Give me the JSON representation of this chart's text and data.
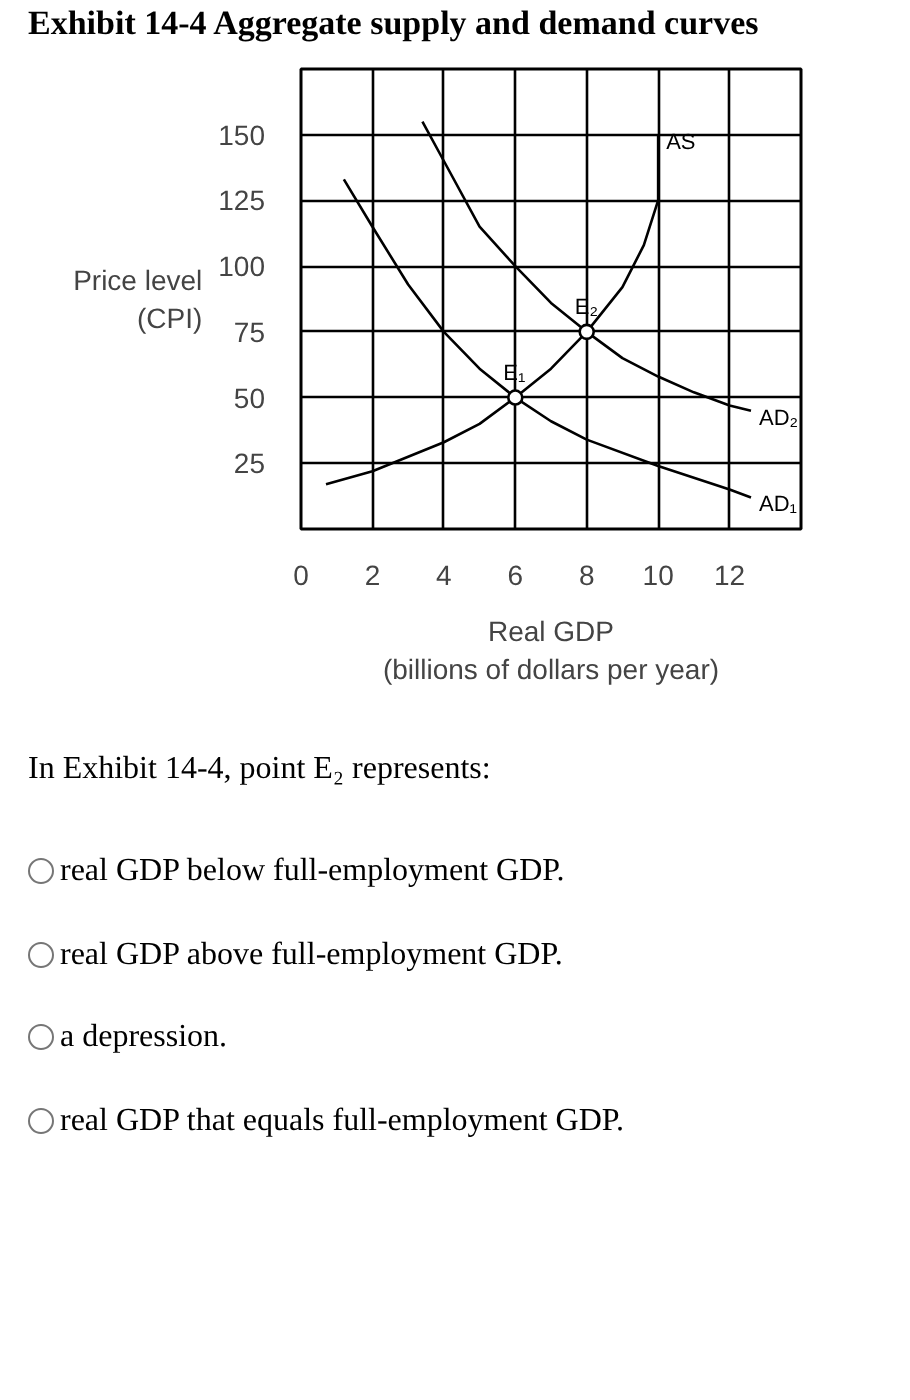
{
  "chart_data": {
    "type": "line",
    "title": "Exhibit 14-4 Aggregate supply and demand curves",
    "xlabel": "Real GDP\n(billions of dollars per year)",
    "ylabel": "Price level\n(CPI)",
    "xlim": [
      0,
      14
    ],
    "ylim": [
      0,
      175
    ],
    "xticks": [
      0,
      2,
      4,
      6,
      8,
      10,
      12
    ],
    "yticks": [
      25,
      50,
      75,
      100,
      125,
      150
    ],
    "grid": true,
    "legend": false,
    "line_style": "solid",
    "series": [
      {
        "name": "AS",
        "color": "#000000",
        "x": [
          0.7,
          2,
          4,
          5,
          6,
          7,
          8,
          9,
          9.6,
          10,
          10,
          10
        ],
        "values": [
          17,
          22,
          33,
          40,
          50,
          61,
          75,
          92,
          108,
          125,
          130,
          150
        ]
      },
      {
        "name": "AD₁",
        "color": "#000000",
        "x": [
          1.2,
          2,
          3,
          4,
          5,
          6,
          7,
          8,
          10,
          12,
          12.6
        ],
        "values": [
          133,
          115,
          93,
          75,
          61,
          50,
          41,
          34,
          24,
          15,
          12
        ]
      },
      {
        "name": "AD₂",
        "color": "#000000",
        "x": [
          3.4,
          4,
          5,
          6,
          7,
          8,
          9,
          10,
          11,
          12,
          12.6
        ],
        "values": [
          155,
          140,
          115,
          100,
          86,
          75,
          65,
          58,
          52,
          47,
          45
        ]
      },
      {
        "type": "scatter",
        "marker": "circle",
        "color": "#000000",
        "x": [
          6,
          8
        ],
        "values": [
          50,
          75
        ]
      }
    ],
    "annotations": [
      {
        "text": "E₁",
        "x": 6,
        "y": 50
      },
      {
        "text": "E₂",
        "x": 8,
        "y": 75
      },
      "In Exhibit 14-4, point E₂ represents:",
      "real GDP below full-employment GDP.",
      "real GDP above full-employment GDP.",
      "a depression.",
      "real GDP that equals full-employment GDP."
    ]
  }
}
